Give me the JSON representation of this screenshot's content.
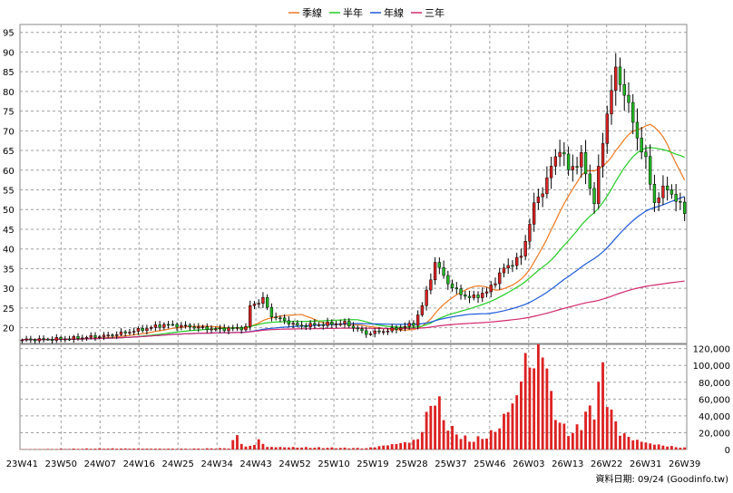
{
  "chart_data": [
    {
      "type": "candlestick",
      "title": "",
      "legend_placement": "top",
      "legend": [
        {
          "label": "季線",
          "color": "#f07820"
        },
        {
          "label": "半年",
          "color": "#22cc22"
        },
        {
          "label": "年線",
          "color": "#1e5adc"
        },
        {
          "label": "三年",
          "color": "#d2286e"
        }
      ],
      "y_ticks": [
        95,
        90,
        85,
        80,
        75,
        70,
        65,
        60,
        55,
        50,
        45,
        40,
        35,
        30,
        25,
        20
      ],
      "y_ticks_label": [
        "95",
        "90",
        "85",
        "80",
        "75",
        "70",
        "65",
        "60",
        "55",
        "50",
        "45",
        "40",
        "35",
        "30",
        "25",
        "20"
      ],
      "ylim": [
        16,
        97
      ],
      "grid": true,
      "up_color": "#dd2222",
      "down_color": "#22bb22",
      "x_ticks": [
        "23W41",
        "23W50",
        "24W07",
        "24W16",
        "24W25",
        "24W34",
        "24W43",
        "24W52",
        "25W10",
        "25W19",
        "25W28",
        "25W37",
        "25W46",
        "26W03",
        "26W13",
        "26W22",
        "26W31",
        "26W39"
      ],
      "price_anchors": [
        {
          "week": 0,
          "close": 16.9
        },
        {
          "week": 10,
          "close": 17.2
        },
        {
          "week": 20,
          "close": 18.0
        },
        {
          "week": 28,
          "close": 19.6
        },
        {
          "week": 33,
          "close": 20.8
        },
        {
          "week": 38,
          "close": 20.4
        },
        {
          "week": 45,
          "close": 19.6
        },
        {
          "week": 52,
          "close": 20.0
        },
        {
          "week": 53,
          "close": 25.5
        },
        {
          "week": 56,
          "close": 27.2
        },
        {
          "week": 58,
          "close": 23.0
        },
        {
          "week": 64,
          "close": 20.5
        },
        {
          "week": 75,
          "close": 21.2
        },
        {
          "week": 80,
          "close": 18.5
        },
        {
          "week": 86,
          "close": 19.5
        },
        {
          "week": 91,
          "close": 21.0
        },
        {
          "week": 93,
          "close": 25.5
        },
        {
          "week": 96,
          "close": 36.5
        },
        {
          "week": 100,
          "close": 30.0
        },
        {
          "week": 104,
          "close": 27.5
        },
        {
          "week": 108,
          "close": 29.0
        },
        {
          "week": 112,
          "close": 35.0
        },
        {
          "week": 116,
          "close": 38.0
        },
        {
          "week": 119,
          "close": 51.0
        },
        {
          "week": 121,
          "close": 55.0
        },
        {
          "week": 125,
          "close": 66.0
        },
        {
          "week": 127,
          "close": 60.0
        },
        {
          "week": 130,
          "close": 63.0
        },
        {
          "week": 133,
          "close": 52.0
        },
        {
          "week": 136,
          "close": 75.0
        },
        {
          "week": 138,
          "close": 85.0
        },
        {
          "week": 140,
          "close": 80.0
        },
        {
          "week": 142,
          "close": 72.0
        },
        {
          "week": 145,
          "close": 62.0
        },
        {
          "week": 147,
          "close": 52.0
        },
        {
          "week": 150,
          "close": 56.0
        },
        {
          "week": 152,
          "close": 52.0
        },
        {
          "week": 154,
          "close": 50.0
        }
      ],
      "moving_averages": [
        {
          "name": "季線",
          "window": 13
        },
        {
          "name": "半年",
          "window": 26
        },
        {
          "name": "年線",
          "window": 52
        },
        {
          "name": "三年",
          "window": 156
        }
      ]
    },
    {
      "type": "bar",
      "title": "",
      "series_name": "",
      "y_ticks": [
        120000,
        100000,
        80000,
        60000,
        40000,
        20000,
        0
      ],
      "y_ticks_label": [
        "120,000",
        "100,000",
        "80,000",
        "60,000",
        "40,000",
        "20,000",
        "0"
      ],
      "ylim": [
        0,
        125000
      ],
      "bar_color": "#dd2222",
      "volume_anchors": [
        {
          "week": 0,
          "value": 300
        },
        {
          "week": 20,
          "value": 1200
        },
        {
          "week": 38,
          "value": 900
        },
        {
          "week": 48,
          "value": 1500
        },
        {
          "week": 50,
          "value": 17000
        },
        {
          "week": 51,
          "value": 8000
        },
        {
          "week": 52,
          "value": 3000
        },
        {
          "week": 54,
          "value": 6000
        },
        {
          "week": 55,
          "value": 11000
        },
        {
          "week": 57,
          "value": 3000
        },
        {
          "week": 80,
          "value": 1500
        },
        {
          "week": 90,
          "value": 9000
        },
        {
          "week": 92,
          "value": 12000
        },
        {
          "week": 94,
          "value": 38000
        },
        {
          "week": 96,
          "value": 66000
        },
        {
          "week": 98,
          "value": 36000
        },
        {
          "week": 100,
          "value": 22000
        },
        {
          "week": 104,
          "value": 10000
        },
        {
          "week": 108,
          "value": 15000
        },
        {
          "week": 111,
          "value": 27000
        },
        {
          "week": 113,
          "value": 48000
        },
        {
          "week": 115,
          "value": 62000
        },
        {
          "week": 117,
          "value": 108000
        },
        {
          "week": 119,
          "value": 98000
        },
        {
          "week": 121,
          "value": 128000
        },
        {
          "week": 123,
          "value": 60000
        },
        {
          "week": 125,
          "value": 30000
        },
        {
          "week": 128,
          "value": 18000
        },
        {
          "week": 131,
          "value": 40000
        },
        {
          "week": 133,
          "value": 50000
        },
        {
          "week": 135,
          "value": 92000
        },
        {
          "week": 137,
          "value": 42000
        },
        {
          "week": 139,
          "value": 20000
        },
        {
          "week": 142,
          "value": 12000
        },
        {
          "week": 146,
          "value": 7000
        },
        {
          "week": 150,
          "value": 4000
        },
        {
          "week": 154,
          "value": 2000
        }
      ]
    }
  ],
  "footer": {
    "credit": "資料日期: 09/24  (Goodinfo.tw)"
  }
}
